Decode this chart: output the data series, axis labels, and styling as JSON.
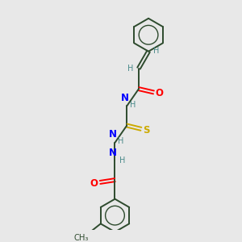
{
  "bg_color": "#e8e8e8",
  "bond_color": "#2d4a2d",
  "atom_colors": {
    "O": "#ff0000",
    "N": "#0000ff",
    "S": "#ccaa00",
    "C": "#2d4a2d",
    "H": "#4a8a8a"
  },
  "fig_width": 3.0,
  "fig_height": 3.0,
  "dpi": 100,
  "xlim": [
    0,
    10
  ],
  "ylim": [
    0,
    10
  ]
}
